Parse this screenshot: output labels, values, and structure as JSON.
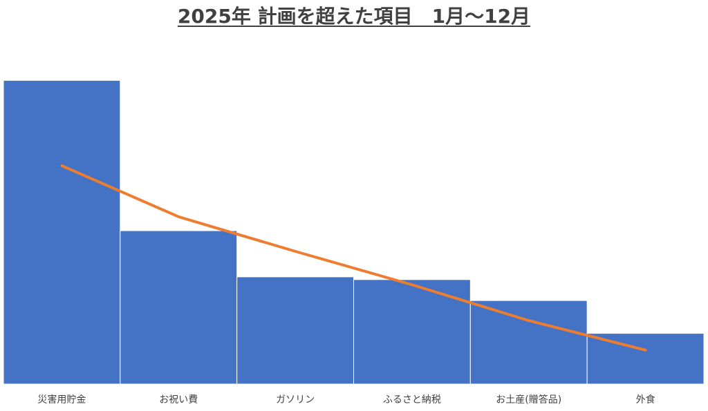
{
  "chart_data": {
    "type": "bar",
    "title": "2025年 計画を超えた項目　1月～12月",
    "categories": [
      "災害用貯金",
      "お祝い費",
      "ガソリン",
      "ふるさと納税",
      "お土産(贈答品)",
      "外食"
    ],
    "series": [
      {
        "type": "bar",
        "values": [
          100,
          50.5,
          35.3,
          34.4,
          27.5,
          16.7
        ],
        "color": "#4472C4"
      },
      {
        "type": "line",
        "values": [
          71.9,
          55.1,
          43.7,
          32.7,
          20.9,
          11.2
        ],
        "color": "#ED7D31"
      }
    ],
    "ylim": [
      0,
      101
    ],
    "grid": false,
    "legend": "none"
  }
}
